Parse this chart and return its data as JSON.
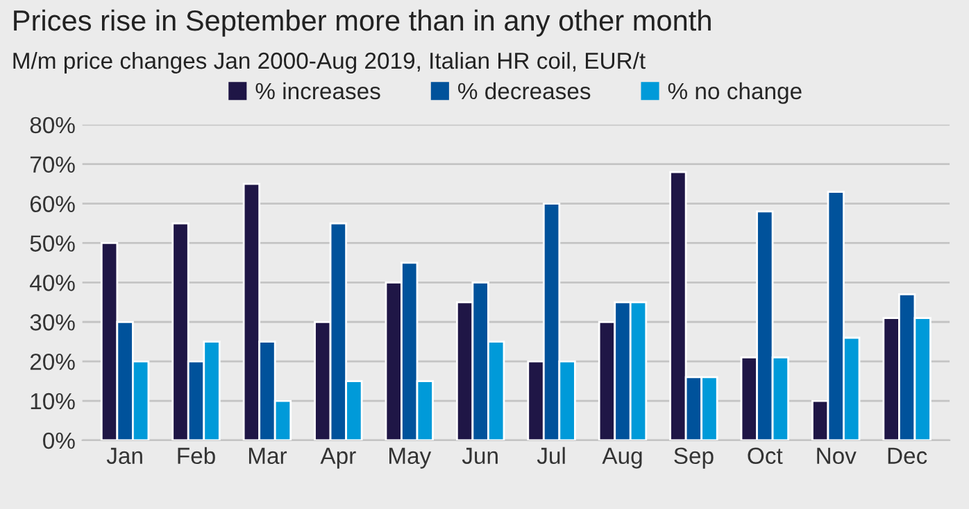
{
  "chart_data": {
    "type": "bar",
    "title": "Prices rise in September more than in any other month",
    "subtitle": "M/m price changes Jan 2000-Aug 2019, Italian HR coil, EUR/t",
    "categories": [
      "Jan",
      "Feb",
      "Mar",
      "Apr",
      "May",
      "Jun",
      "Jul",
      "Aug",
      "Sep",
      "Oct",
      "Nov",
      "Dec"
    ],
    "series": [
      {
        "name": "% increases",
        "color": "#1f1646",
        "values": [
          50,
          55,
          65,
          30,
          40,
          35,
          20,
          30,
          68,
          21,
          10,
          31
        ]
      },
      {
        "name": "% decreases",
        "color": "#00529b",
        "values": [
          30,
          20,
          25,
          55,
          45,
          40,
          60,
          35,
          16,
          58,
          63,
          37
        ]
      },
      {
        "name": "% no change",
        "color": "#009ad9",
        "values": [
          20,
          25,
          10,
          15,
          15,
          25,
          20,
          35,
          16,
          21,
          26,
          31
        ]
      }
    ],
    "ylim": [
      0,
      80
    ],
    "yticks": [
      {
        "value": 0,
        "label": "0%"
      },
      {
        "value": 10,
        "label": "10%"
      },
      {
        "value": 20,
        "label": "20%"
      },
      {
        "value": 30,
        "label": "30%"
      },
      {
        "value": 40,
        "label": "40%"
      },
      {
        "value": 50,
        "label": "50%"
      },
      {
        "value": 60,
        "label": "60%"
      },
      {
        "value": 70,
        "label": "70%"
      },
      {
        "value": 80,
        "label": "80%"
      }
    ],
    "grid": "y",
    "legend": "top"
  }
}
